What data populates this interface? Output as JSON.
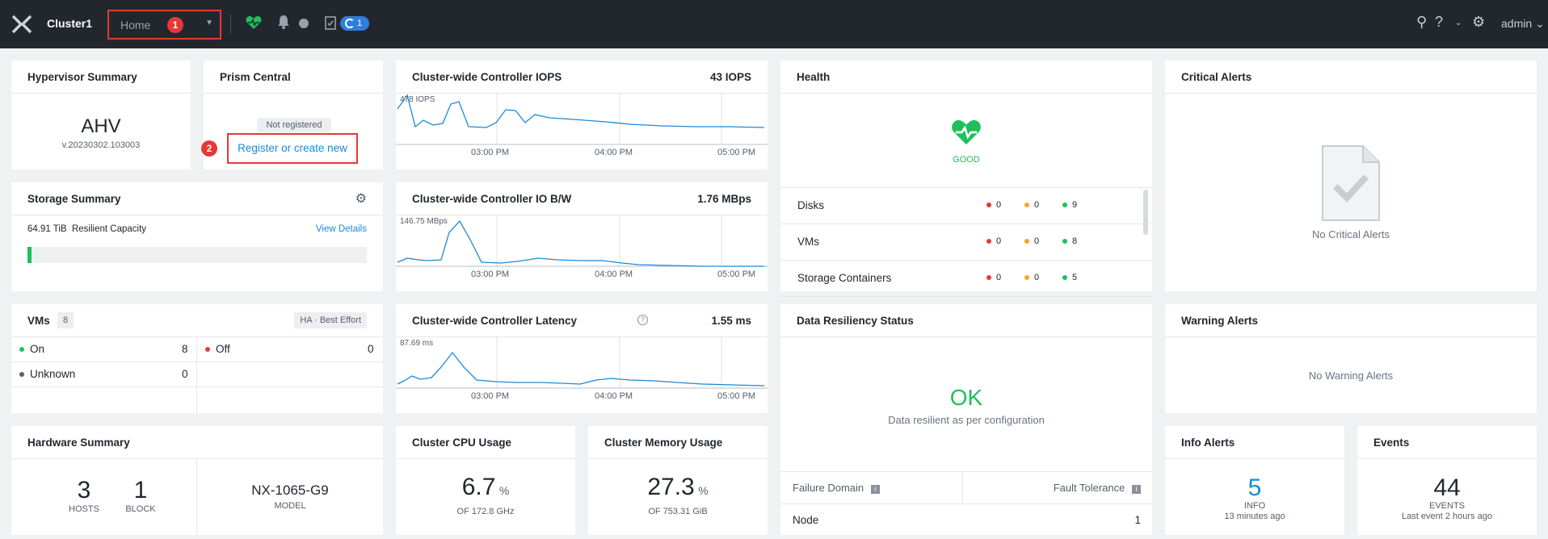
{
  "topbar": {
    "cluster_name": "Cluster1",
    "home_label": "Home",
    "badge1": "1",
    "task_count": "1",
    "user": "admin"
  },
  "badge2": "2",
  "hypervisor": {
    "title": "Hypervisor Summary",
    "name": "AHV",
    "version": "v.20230302.103003"
  },
  "prism": {
    "title": "Prism Central",
    "status": "Not registered",
    "link": "Register or create new"
  },
  "iops": {
    "title": "Cluster-wide Controller IOPS",
    "value": "43 IOPS",
    "peak": "478 IOPS",
    "ticks": [
      "03:00 PM",
      "04:00 PM",
      "05:00 PM"
    ]
  },
  "iobw": {
    "title": "Cluster-wide Controller IO B/W",
    "value": "1.76 MBps",
    "peak": "146.75 MBps",
    "ticks": [
      "03:00 PM",
      "04:00 PM",
      "05:00 PM"
    ]
  },
  "latency": {
    "title": "Cluster-wide Controller Latency",
    "value": "1.55 ms",
    "peak": "87.69 ms",
    "ticks": [
      "03:00 PM",
      "04:00 PM",
      "05:00 PM"
    ]
  },
  "health": {
    "title": "Health",
    "status": "GOOD",
    "rows": [
      {
        "name": "Disks",
        "red": "0",
        "amber": "0",
        "green": "9"
      },
      {
        "name": "VMs",
        "red": "0",
        "amber": "0",
        "green": "8"
      },
      {
        "name": "Storage Containers",
        "red": "0",
        "amber": "0",
        "green": "5"
      }
    ]
  },
  "critical": {
    "title": "Critical Alerts",
    "empty": "No Critical Alerts"
  },
  "storage": {
    "title": "Storage Summary",
    "capacity": "64.91 TiB",
    "capacity_label": "Resilient Capacity",
    "link": "View Details",
    "used_fraction": 0.013
  },
  "vms": {
    "title": "VMs",
    "count": "8",
    "ha": "HA",
    "ha_mode": "Best Effort",
    "on_label": "On",
    "on": "8",
    "off_label": "Off",
    "off": "0",
    "unknown_label": "Unknown",
    "unknown": "0"
  },
  "resiliency": {
    "title": "Data Resiliency Status",
    "status": "OK",
    "desc": "Data resilient as per configuration",
    "col1": "Failure Domain",
    "col2": "Fault Tolerance",
    "row_name": "Node",
    "row_value": "1"
  },
  "warning": {
    "title": "Warning Alerts",
    "empty": "No Warning Alerts"
  },
  "hardware": {
    "title": "Hardware Summary",
    "hosts": "3",
    "hosts_label": "HOSTS",
    "blocks": "1",
    "blocks_label": "BLOCK",
    "model": "NX-1065-G9",
    "model_label": "MODEL"
  },
  "cpu": {
    "title": "Cluster CPU Usage",
    "value": "6.7",
    "unit": "%",
    "sub": "OF 172.8 GHz"
  },
  "memory": {
    "title": "Cluster Memory Usage",
    "value": "27.3",
    "unit": "%",
    "sub": "OF 753.31 GiB"
  },
  "info": {
    "title": "Info Alerts",
    "value": "5",
    "label": "INFO",
    "sub": "13 minutes ago"
  },
  "events": {
    "title": "Events",
    "value": "44",
    "label": "EVENTS",
    "sub": "Last event 2 hours ago"
  },
  "colors": {
    "accent": "#1a8ad8",
    "good": "#1fbf5b",
    "red": "#e53935",
    "amber": "#f5a623",
    "nav": "#22272e"
  }
}
